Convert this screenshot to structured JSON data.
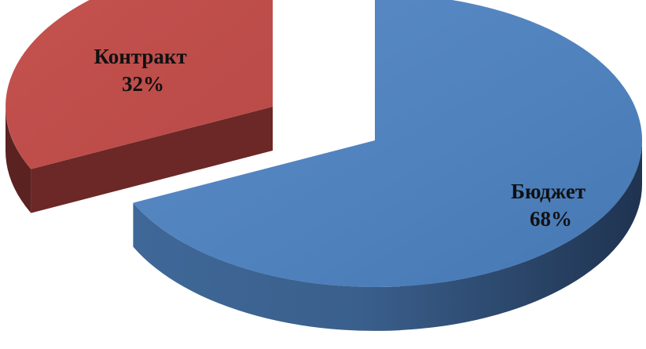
{
  "chart_data": {
    "type": "pie",
    "style": "3d-exploded",
    "title": "",
    "legend": "none",
    "slices": [
      {
        "label": "Бюджет",
        "value": 68,
        "value_label": "68%",
        "color": "#4F81BD"
      },
      {
        "label": "Контракт",
        "value": 32,
        "value_label": "32%",
        "color": "#C0504D"
      }
    ]
  }
}
